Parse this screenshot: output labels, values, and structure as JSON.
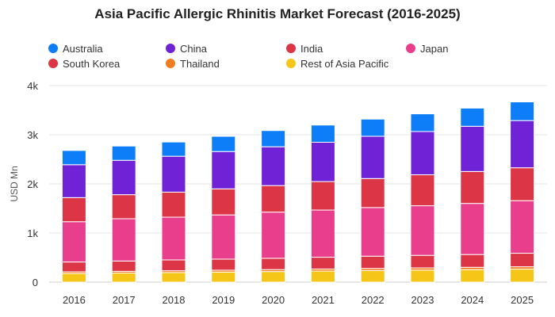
{
  "chart_data": {
    "type": "bar",
    "stacked": true,
    "title": "Asia Pacific Allergic Rhinitis Market Forecast (2016-2025)",
    "xlabel": "",
    "ylabel": "USD Mn",
    "ylim": [
      0,
      4000
    ],
    "yticks": [
      0,
      1000,
      2000,
      3000,
      4000
    ],
    "ytick_labels": [
      "0",
      "1k",
      "2k",
      "3k",
      "4k"
    ],
    "grid": "horizontal",
    "legend_position": "top",
    "categories": [
      "2016",
      "2017",
      "2018",
      "2019",
      "2020",
      "2021",
      "2022",
      "2023",
      "2024",
      "2025"
    ],
    "series": [
      {
        "name": "Rest of Asia Pacific",
        "color": "#f5c518",
        "values": [
          175,
          185,
          195,
          205,
          215,
          225,
          235,
          245,
          255,
          265
        ]
      },
      {
        "name": "Thailand",
        "color": "#f47c20",
        "values": [
          35,
          35,
          37,
          38,
          40,
          42,
          43,
          45,
          47,
          48
        ]
      },
      {
        "name": "South Korea",
        "color": "#dc3545",
        "values": [
          200,
          210,
          220,
          225,
          230,
          240,
          250,
          255,
          260,
          275
        ]
      },
      {
        "name": "Japan",
        "color": "#e83e8c",
        "values": [
          820,
          860,
          870,
          900,
          940,
          960,
          990,
          1010,
          1040,
          1070
        ]
      },
      {
        "name": "India",
        "color": "#dc3545",
        "values": [
          490,
          490,
          510,
          530,
          540,
          580,
          590,
          630,
          650,
          670
        ]
      },
      {
        "name": "China",
        "color": "#6f22d6",
        "values": [
          670,
          700,
          730,
          760,
          790,
          800,
          860,
          880,
          920,
          960
        ]
      },
      {
        "name": "Australia",
        "color": "#0d7ef7",
        "values": [
          290,
          290,
          290,
          310,
          330,
          350,
          350,
          360,
          370,
          380
        ]
      }
    ],
    "legend_rows": [
      [
        "Australia",
        "China",
        "India",
        "Japan"
      ],
      [
        "South Korea",
        "Thailand",
        "Rest of Asia Pacific"
      ]
    ]
  }
}
